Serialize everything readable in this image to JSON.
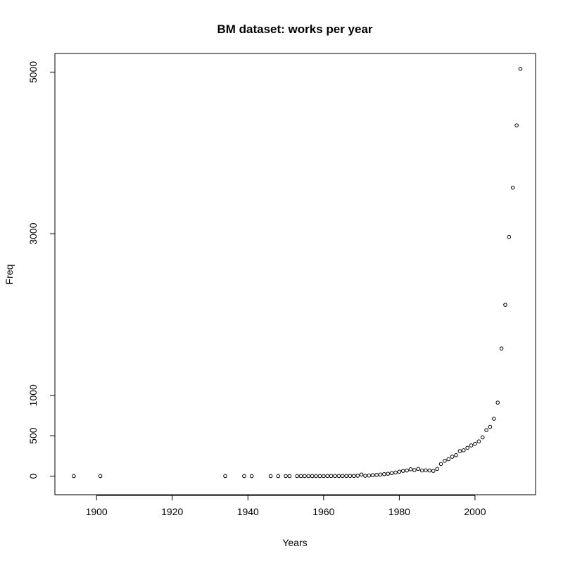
{
  "chart_data": {
    "type": "scatter",
    "title": "BM dataset: works per year",
    "xlabel": "Years",
    "ylabel": "Freq",
    "xlim": [
      1889,
      2016
    ],
    "ylim": [
      -230,
      5230
    ],
    "x_ticks": [
      1900,
      1920,
      1940,
      1960,
      1980,
      2000
    ],
    "x_tick_labels": [
      "1900",
      "1920",
      "1940",
      "1960",
      "1980",
      "2000"
    ],
    "y_ticks": [
      0,
      500,
      1000,
      3000,
      5000
    ],
    "y_tick_labels": [
      "0",
      "500",
      "1000",
      "3000",
      "5000"
    ],
    "grid": false,
    "marker": "open-circle",
    "points": [
      {
        "x": 1894,
        "y": 1
      },
      {
        "x": 1901,
        "y": 1
      },
      {
        "x": 1934,
        "y": 1
      },
      {
        "x": 1939,
        "y": 1
      },
      {
        "x": 1941,
        "y": 1
      },
      {
        "x": 1946,
        "y": 1
      },
      {
        "x": 1948,
        "y": 1
      },
      {
        "x": 1950,
        "y": 1
      },
      {
        "x": 1951,
        "y": 1
      },
      {
        "x": 1953,
        "y": 1
      },
      {
        "x": 1954,
        "y": 1
      },
      {
        "x": 1955,
        "y": 1
      },
      {
        "x": 1956,
        "y": 1
      },
      {
        "x": 1957,
        "y": 1
      },
      {
        "x": 1958,
        "y": 1
      },
      {
        "x": 1959,
        "y": 1
      },
      {
        "x": 1960,
        "y": 1
      },
      {
        "x": 1961,
        "y": 2
      },
      {
        "x": 1962,
        "y": 2
      },
      {
        "x": 1963,
        "y": 2
      },
      {
        "x": 1964,
        "y": 2
      },
      {
        "x": 1965,
        "y": 2
      },
      {
        "x": 1966,
        "y": 3
      },
      {
        "x": 1967,
        "y": 3
      },
      {
        "x": 1968,
        "y": 3
      },
      {
        "x": 1969,
        "y": 5
      },
      {
        "x": 1970,
        "y": 20
      },
      {
        "x": 1971,
        "y": 5
      },
      {
        "x": 1972,
        "y": 8
      },
      {
        "x": 1973,
        "y": 12
      },
      {
        "x": 1974,
        "y": 15
      },
      {
        "x": 1975,
        "y": 20
      },
      {
        "x": 1976,
        "y": 25
      },
      {
        "x": 1977,
        "y": 30
      },
      {
        "x": 1978,
        "y": 38
      },
      {
        "x": 1979,
        "y": 45
      },
      {
        "x": 1980,
        "y": 55
      },
      {
        "x": 1981,
        "y": 65
      },
      {
        "x": 1982,
        "y": 70
      },
      {
        "x": 1983,
        "y": 85
      },
      {
        "x": 1984,
        "y": 75
      },
      {
        "x": 1985,
        "y": 90
      },
      {
        "x": 1986,
        "y": 70
      },
      {
        "x": 1987,
        "y": 72
      },
      {
        "x": 1988,
        "y": 70
      },
      {
        "x": 1989,
        "y": 65
      },
      {
        "x": 1990,
        "y": 90
      },
      {
        "x": 1991,
        "y": 150
      },
      {
        "x": 1992,
        "y": 190
      },
      {
        "x": 1993,
        "y": 210
      },
      {
        "x": 1994,
        "y": 240
      },
      {
        "x": 1995,
        "y": 260
      },
      {
        "x": 1996,
        "y": 310
      },
      {
        "x": 1997,
        "y": 320
      },
      {
        "x": 1998,
        "y": 350
      },
      {
        "x": 1999,
        "y": 380
      },
      {
        "x": 2000,
        "y": 400
      },
      {
        "x": 2001,
        "y": 430
      },
      {
        "x": 2002,
        "y": 480
      },
      {
        "x": 2003,
        "y": 570
      },
      {
        "x": 2004,
        "y": 610
      },
      {
        "x": 2005,
        "y": 710
      },
      {
        "x": 2006,
        "y": 910
      },
      {
        "x": 2007,
        "y": 1580
      },
      {
        "x": 2008,
        "y": 2120
      },
      {
        "x": 2009,
        "y": 2960
      },
      {
        "x": 2010,
        "y": 3570
      },
      {
        "x": 2011,
        "y": 4340
      },
      {
        "x": 2012,
        "y": 5040
      }
    ]
  }
}
